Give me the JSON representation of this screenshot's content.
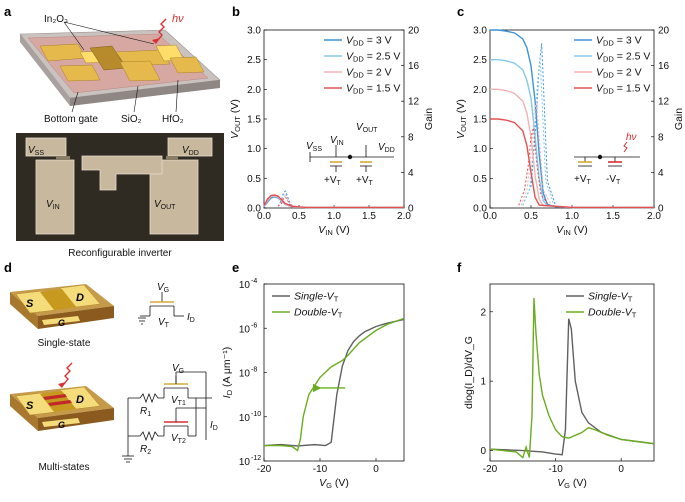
{
  "panels": {
    "a": {
      "letter": "a",
      "labels": {
        "in2o3": "In₂O₃",
        "hv": "hν",
        "bottom_gate": "Bottom gate",
        "sio2": "SiO₂",
        "hfo2": "HfO₂",
        "vss": "V",
        "vss_sub": "SS",
        "vdd": "V",
        "vdd_sub": "DD",
        "vin": "V",
        "vin_sub": "IN",
        "vout": "V",
        "vout_sub": "OUT",
        "caption": "Reconfigurable inverter"
      }
    },
    "b": {
      "letter": "b",
      "inset": {
        "vin": "V",
        "vin_sub": "IN",
        "vout": "V",
        "vout_sub": "OUT",
        "vss": "V",
        "vss_sub": "SS",
        "vdd": "V",
        "vdd_sub": "DD",
        "vt1": "+V",
        "vt1_sub": "T",
        "vt2": "+V",
        "vt2_sub": "T"
      }
    },
    "c": {
      "letter": "c",
      "inset": {
        "hv": "hν",
        "vt1": "+V",
        "vt1_sub": "T",
        "vt2": "-V",
        "vt2_sub": "T"
      }
    },
    "d": {
      "letter": "d",
      "single": {
        "s": "S",
        "d": "D",
        "g": "G",
        "vg": "V",
        "vg_sub": "G",
        "vt": "V",
        "vt_sub": "T",
        "id": "I",
        "id_sub": "D",
        "caption": "Single-state"
      },
      "multi": {
        "s": "S",
        "d": "D",
        "g": "G",
        "vg": "V",
        "vg_sub": "G",
        "r1": "R",
        "r1_sub": "1",
        "r2": "R",
        "r2_sub": "2",
        "vt1": "V",
        "vt1_sub": "T1",
        "vt2": "V",
        "vt2_sub": "T2",
        "id": "I",
        "id_sub": "D",
        "caption": "Multi-states"
      }
    },
    "e": {
      "letter": "e"
    },
    "f": {
      "letter": "f"
    }
  },
  "colors": {
    "vdd_3": "#3a93d8",
    "vdd_2_5": "#85c8ec",
    "vdd_2": "#f3b3b3",
    "vdd_1_5": "#e25050",
    "single_vt": "#606060",
    "double_vt": "#6aad1f",
    "gold": "#d9a93a",
    "red_accent": "#d83030"
  },
  "chart_data": [
    {
      "id": "b",
      "type": "line",
      "xlabel": "V_IN (V)",
      "ylabel_left": "V_OUT (V)",
      "ylabel_right": "Gain",
      "xlim": [
        0,
        2.0
      ],
      "ylim_left": [
        0,
        3.0
      ],
      "ylim_right": [
        0,
        20
      ],
      "xticks": [
        "0.0",
        "0.5",
        "1.0",
        "1.5",
        "2.0"
      ],
      "yticks_left": [
        "0.0",
        "0.5",
        "1.0",
        "1.5",
        "2.0",
        "2.5",
        "3.0"
      ],
      "yticks_right": [
        "0",
        "4",
        "8",
        "12",
        "16",
        "20"
      ],
      "legend_position": "top-right",
      "series": [
        {
          "name": "V_DD = 3 V",
          "legend_main": "V",
          "legend_sub": "DD",
          "legend_tail": " = 3 V",
          "color_key": "vdd_3",
          "x": [
            0,
            0.05,
            0.1,
            0.15,
            0.2,
            0.25,
            0.3,
            0.4,
            0.6,
            1.0,
            1.5,
            2.0
          ],
          "y": [
            0.02,
            0.1,
            0.17,
            0.19,
            0.17,
            0.12,
            0.06,
            0.02,
            0.01,
            0.01,
            0.01,
            0.01
          ],
          "gain_x": [
            0.2,
            0.25,
            0.28,
            0.31,
            0.34,
            0.38,
            0.45
          ],
          "gain": [
            0.2,
            0.9,
            1.8,
            1.9,
            1.2,
            0.4,
            0.1
          ]
        },
        {
          "name": "V_DD = 2.5 V",
          "legend_main": "V",
          "legend_sub": "DD",
          "legend_tail": " = 2.5 V",
          "color_key": "vdd_2_5",
          "x": [
            0,
            0.05,
            0.1,
            0.15,
            0.2,
            0.25,
            0.3,
            0.4,
            0.6,
            1.0,
            1.5,
            2.0
          ],
          "y": [
            0.02,
            0.12,
            0.19,
            0.2,
            0.18,
            0.12,
            0.06,
            0.02,
            0.01,
            0.01,
            0.01,
            0.01
          ],
          "gain_x": [
            0.2,
            0.25,
            0.28,
            0.31,
            0.34,
            0.38,
            0.45
          ],
          "gain": [
            0.2,
            0.7,
            1.5,
            1.6,
            1.0,
            0.3,
            0.1
          ]
        },
        {
          "name": "V_DD = 2 V",
          "legend_main": "V",
          "legend_sub": "DD",
          "legend_tail": " = 2 V",
          "color_key": "vdd_2",
          "x": [
            0,
            0.05,
            0.1,
            0.15,
            0.2,
            0.25,
            0.3,
            0.4,
            0.6,
            1.0,
            1.5,
            2.0
          ],
          "y": [
            0.03,
            0.13,
            0.2,
            0.21,
            0.19,
            0.13,
            0.07,
            0.02,
            0.01,
            0.01,
            0.01,
            0.01
          ],
          "gain_x": [
            0.2,
            0.25,
            0.28,
            0.31,
            0.34,
            0.38,
            0.45
          ],
          "gain": [
            0.2,
            0.6,
            1.3,
            1.4,
            0.9,
            0.3,
            0.1
          ]
        },
        {
          "name": "V_DD = 1.5 V",
          "legend_main": "V",
          "legend_sub": "DD",
          "legend_tail": " = 1.5 V",
          "color_key": "vdd_1_5",
          "x": [
            0,
            0.05,
            0.1,
            0.15,
            0.2,
            0.25,
            0.3,
            0.4,
            0.6,
            1.0,
            1.5,
            2.0
          ],
          "y": [
            0.04,
            0.15,
            0.21,
            0.22,
            0.2,
            0.14,
            0.08,
            0.03,
            0.01,
            0.01,
            0.01,
            0.01
          ],
          "gain_x": [
            0.2,
            0.25,
            0.28,
            0.31,
            0.34,
            0.38,
            0.45
          ],
          "gain": [
            0.2,
            0.5,
            1.1,
            1.2,
            0.8,
            0.3,
            0.1
          ]
        }
      ]
    },
    {
      "id": "c",
      "type": "line",
      "xlabel": "V_IN (V)",
      "ylabel_left": "V_OUT (V)",
      "ylabel_right": "Gain",
      "xlim": [
        0,
        2.0
      ],
      "ylim_left": [
        0,
        3.0
      ],
      "ylim_right": [
        0,
        20
      ],
      "xticks": [
        "0.0",
        "0.5",
        "1.0",
        "1.5",
        "2.0"
      ],
      "yticks_left": [
        "0.0",
        "0.5",
        "1.0",
        "1.5",
        "2.0",
        "2.5",
        "3.0"
      ],
      "yticks_right": [
        "0",
        "4",
        "8",
        "12",
        "16",
        "20"
      ],
      "legend_position": "top-right",
      "series": [
        {
          "name": "V_DD = 3 V",
          "legend_main": "V",
          "legend_sub": "DD",
          "legend_tail": " = 3 V",
          "color_key": "vdd_3",
          "x": [
            0,
            0.1,
            0.2,
            0.3,
            0.4,
            0.45,
            0.5,
            0.55,
            0.6,
            0.65,
            0.7,
            0.8,
            1.0,
            2.0
          ],
          "y": [
            3.0,
            3.0,
            2.98,
            2.95,
            2.85,
            2.7,
            2.4,
            1.8,
            0.9,
            0.25,
            0.06,
            0.02,
            0.01,
            0.01
          ],
          "gain_x": [
            0.4,
            0.5,
            0.55,
            0.6,
            0.63,
            0.66,
            0.7,
            0.8
          ],
          "gain": [
            0.3,
            2.5,
            8,
            16,
            18.5,
            12,
            3,
            0.3
          ]
        },
        {
          "name": "V_DD = 2.5 V",
          "legend_main": "V",
          "legend_sub": "DD",
          "legend_tail": " = 2.5 V",
          "color_key": "vdd_2_5",
          "x": [
            0,
            0.1,
            0.2,
            0.3,
            0.4,
            0.45,
            0.5,
            0.55,
            0.6,
            0.65,
            0.7,
            1.0,
            2.0
          ],
          "y": [
            2.5,
            2.5,
            2.48,
            2.44,
            2.33,
            2.15,
            1.85,
            1.2,
            0.5,
            0.12,
            0.04,
            0.01,
            0.01
          ],
          "gain_x": [
            0.4,
            0.48,
            0.53,
            0.58,
            0.61,
            0.64,
            0.68,
            0.78
          ],
          "gain": [
            0.3,
            2,
            7,
            14,
            17,
            11,
            3,
            0.3
          ]
        },
        {
          "name": "V_DD = 2 V",
          "legend_main": "V",
          "legend_sub": "DD",
          "legend_tail": " = 2 V",
          "color_key": "vdd_2",
          "x": [
            0,
            0.1,
            0.2,
            0.3,
            0.4,
            0.45,
            0.5,
            0.55,
            0.6,
            0.65,
            1.0,
            2.0
          ],
          "y": [
            2.0,
            2.0,
            1.98,
            1.93,
            1.8,
            1.6,
            1.2,
            0.55,
            0.15,
            0.04,
            0.01,
            0.01
          ],
          "gain_x": [
            0.38,
            0.45,
            0.5,
            0.54,
            0.57,
            0.6,
            0.65,
            0.75
          ],
          "gain": [
            0.3,
            2,
            6,
            11,
            12,
            8,
            2,
            0.3
          ]
        },
        {
          "name": "V_DD = 1.5 V",
          "legend_main": "V",
          "legend_sub": "DD",
          "legend_tail": " = 1.5 V",
          "color_key": "vdd_1_5",
          "x": [
            0,
            0.1,
            0.2,
            0.3,
            0.4,
            0.45,
            0.5,
            0.55,
            0.6,
            1.0,
            2.0
          ],
          "y": [
            1.5,
            1.5,
            1.48,
            1.44,
            1.3,
            1.05,
            0.6,
            0.18,
            0.05,
            0.01,
            0.01
          ],
          "gain_x": [
            0.35,
            0.42,
            0.47,
            0.5,
            0.53,
            0.57,
            0.62,
            0.72
          ],
          "gain": [
            0.3,
            2,
            5,
            8,
            9,
            5,
            1.5,
            0.3
          ]
        }
      ]
    },
    {
      "id": "e",
      "type": "line",
      "xlabel": "V_G (V)",
      "ylabel": "I_D (A μm⁻¹)",
      "xlim": [
        -20,
        5
      ],
      "ylim": [
        1e-12,
        0.0001
      ],
      "yscale": "log",
      "xticks": [
        "-20",
        "-10",
        "0"
      ],
      "yticks": [
        "10",
        "10",
        "10",
        "10",
        "10"
      ],
      "ytick_exponents": [
        "-12",
        "-10",
        "-8",
        "-6",
        "-4"
      ],
      "legend_position": "top-left",
      "annotation": "green arrow pointing left",
      "series": [
        {
          "name": "Single-V_T",
          "legend_main": "Single-V",
          "legend_sub": "T",
          "color_key": "single_vt",
          "x": [
            -20,
            -17,
            -14,
            -11,
            -9,
            -8,
            -7,
            -6,
            -5,
            -4,
            -3,
            -2,
            0,
            2,
            5
          ],
          "y": [
            5e-12,
            5.5e-12,
            4.8e-12,
            5.5e-12,
            5e-12,
            7e-12,
            1e-09,
            2e-08,
            1e-07,
            2.5e-07,
            4.5e-07,
            7e-07,
            1.2e-06,
            1.7e-06,
            2.5e-06
          ]
        },
        {
          "name": "Double-V_T",
          "legend_main": "Double-V",
          "legend_sub": "T",
          "color_key": "double_vt",
          "x": [
            -20,
            -17,
            -15,
            -14,
            -13.5,
            -13,
            -12,
            -10,
            -8,
            -6,
            -5,
            -3,
            0,
            2,
            5
          ],
          "y": [
            5e-12,
            5e-12,
            4.5e-12,
            3e-12,
            1e-11,
            1e-10,
            1e-09,
            6e-09,
            1.8e-08,
            3.5e-08,
            6e-08,
            2.2e-07,
            8e-07,
            1.5e-06,
            2.8e-06
          ]
        }
      ]
    },
    {
      "id": "f",
      "type": "line",
      "xlabel": "V_G (V)",
      "ylabel": "dlog(I_D)/dV_G",
      "xlim": [
        -20,
        5
      ],
      "ylim": [
        -0.15,
        2.4
      ],
      "xticks": [
        "-20",
        "-10",
        "0"
      ],
      "yticks": [
        "0",
        "1",
        "2"
      ],
      "legend_position": "top-right",
      "series": [
        {
          "name": "Single-V_T",
          "legend_main": "Single-V",
          "legend_sub": "T",
          "color_key": "single_vt",
          "x": [
            -20,
            -15,
            -12,
            -10,
            -9,
            -8.5,
            -8,
            -7.6,
            -7,
            -6,
            -5,
            -3,
            0,
            5
          ],
          "y": [
            0.02,
            0.0,
            -0.02,
            -0.05,
            -0.06,
            0.3,
            1.9,
            1.75,
            1.0,
            0.55,
            0.4,
            0.26,
            0.16,
            0.1
          ]
        },
        {
          "name": "Double-V_T",
          "legend_main": "Double-V",
          "legend_sub": "T",
          "color_key": "double_vt",
          "x": [
            -20,
            -16,
            -15,
            -14.5,
            -14,
            -13.6,
            -13.3,
            -13,
            -12.5,
            -12,
            -11,
            -10,
            -9,
            -8,
            -6,
            -5,
            -4,
            -2,
            0,
            5
          ],
          "y": [
            0.02,
            -0.02,
            -0.1,
            0.05,
            -0.1,
            0.5,
            2.2,
            1.7,
            1.1,
            0.8,
            0.5,
            0.3,
            0.2,
            0.18,
            0.26,
            0.33,
            0.3,
            0.22,
            0.16,
            0.1
          ]
        }
      ]
    }
  ]
}
